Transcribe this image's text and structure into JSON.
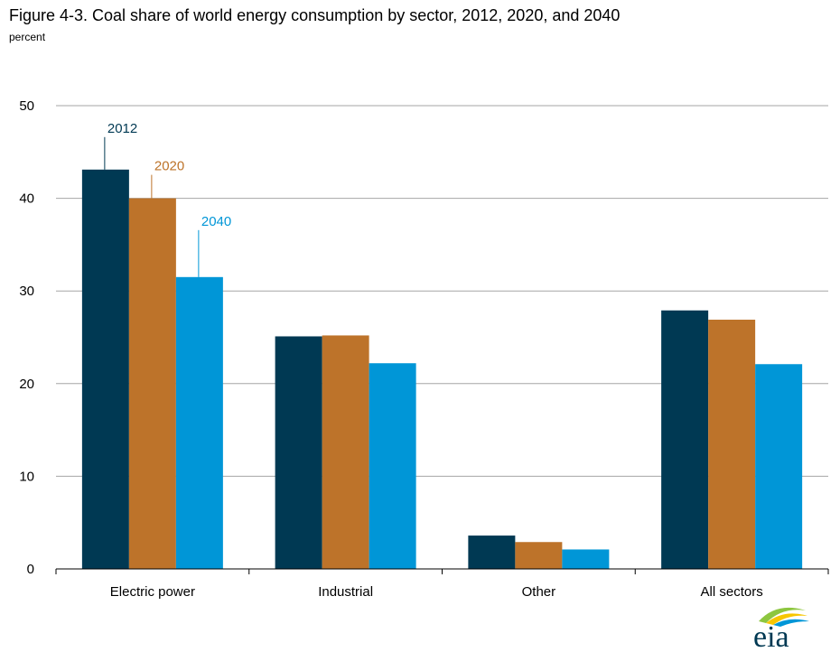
{
  "chart_data": {
    "type": "bar",
    "title": "Figure 4-3. Coal share of world energy consumption by sector, 2012, 2020, and 2040",
    "ylabel": "percent",
    "xlabel": "",
    "categories": [
      "Electric power",
      "Industrial",
      "Other",
      "All sectors"
    ],
    "series": [
      {
        "name": "2012",
        "color": "#003953",
        "values": [
          43.1,
          25.1,
          3.6,
          27.9
        ]
      },
      {
        "name": "2020",
        "color": "#bd732a",
        "values": [
          40.0,
          25.2,
          2.9,
          26.9
        ]
      },
      {
        "name": "2040",
        "color": "#0096d7",
        "values": [
          31.5,
          22.2,
          2.1,
          22.1
        ]
      }
    ],
    "ylim": [
      0,
      50
    ],
    "yticks": [
      0,
      10,
      20,
      30,
      40,
      50
    ],
    "grid": true,
    "legend": "series labels placed above the Electric power bars"
  },
  "logo": {
    "name": "eia-logo",
    "text": "eia"
  }
}
